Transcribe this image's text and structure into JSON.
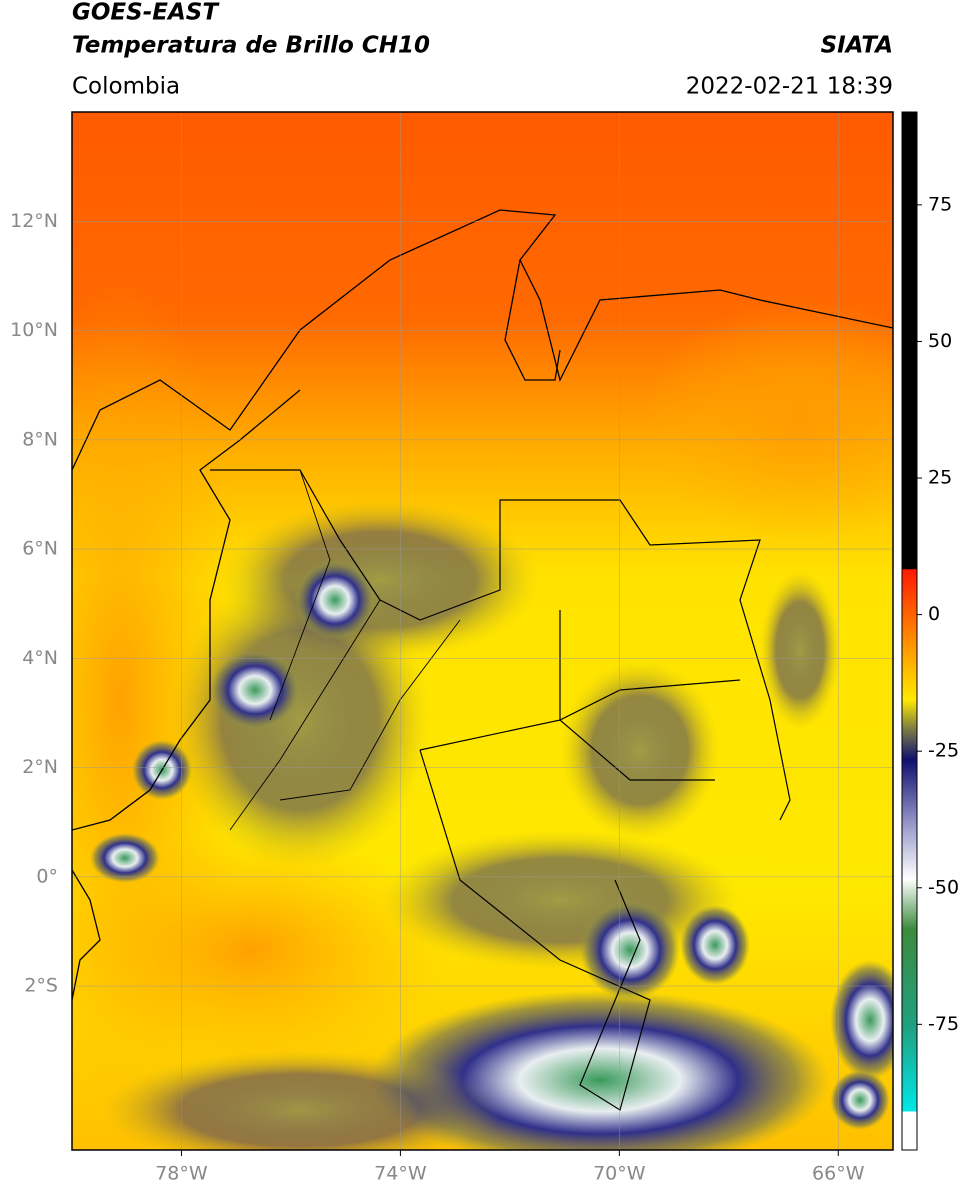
{
  "chart_data": {
    "type": "map",
    "title": "GOES-EAST",
    "subtitle": "Temperatura de Brillo CH10",
    "source": "SIATA",
    "region": "Colombia",
    "timestamp": "2022-02-21 18:39",
    "xlim": [
      -80,
      -65
    ],
    "ylim": [
      -5,
      14
    ],
    "xticks": [
      {
        "value": -78,
        "label": "78°W"
      },
      {
        "value": -74,
        "label": "74°W"
      },
      {
        "value": -70,
        "label": "70°W"
      },
      {
        "value": -66,
        "label": "66°W"
      }
    ],
    "yticks": [
      {
        "value": 12,
        "label": "12°N"
      },
      {
        "value": 10,
        "label": "10°N"
      },
      {
        "value": 8,
        "label": "8°N"
      },
      {
        "value": 6,
        "label": "6°N"
      },
      {
        "value": 4,
        "label": "4°N"
      },
      {
        "value": 2,
        "label": "2°N"
      },
      {
        "value": 0,
        "label": "0°"
      },
      {
        "value": -2,
        "label": "2°S"
      }
    ],
    "grid": true,
    "colorbar": {
      "lim": [
        -98,
        92
      ],
      "ticks": [
        75,
        50,
        25,
        0,
        -25,
        -50,
        -75
      ]
    }
  }
}
